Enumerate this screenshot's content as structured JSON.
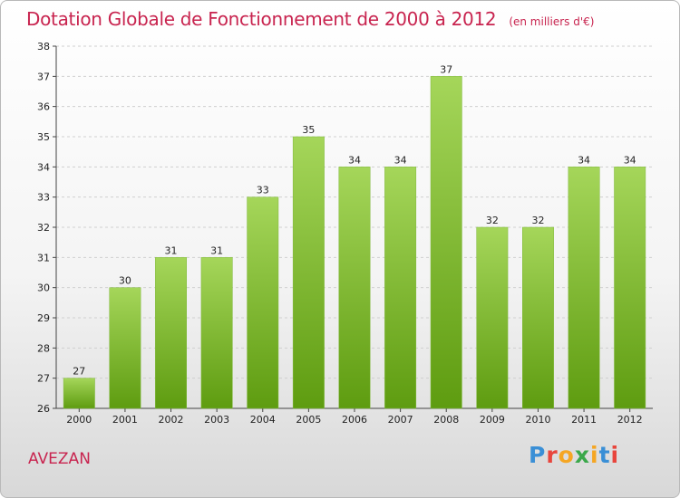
{
  "header": {
    "title": "Dotation Globale de Fonctionnement de 2000 à 2012",
    "subtitle": "(en milliers d'€)"
  },
  "footer": {
    "city": "AVEZAN",
    "logo_text": "Proxiti",
    "logo_colors": [
      "#3a8fd6",
      "#e8453c",
      "#f5a623",
      "#3aa84a",
      "#f5a623",
      "#3a8fd6",
      "#e8453c"
    ]
  },
  "colors": {
    "title": "#c8244f",
    "bar_light": "#a5d65a",
    "bar_dark": "#5e9c10",
    "grid": "#d0d0d0"
  },
  "chart_data": {
    "type": "bar",
    "title": "Dotation Globale de Fonctionnement de 2000 à 2012",
    "subtitle": "(en milliers d'€)",
    "categories": [
      "2000",
      "2001",
      "2002",
      "2003",
      "2004",
      "2005",
      "2006",
      "2007",
      "2008",
      "2009",
      "2010",
      "2011",
      "2012"
    ],
    "values": [
      27,
      30,
      31,
      31,
      33,
      35,
      34,
      34,
      37,
      32,
      32,
      34,
      34
    ],
    "ylim": [
      26,
      38
    ],
    "yticks": [
      26,
      27,
      28,
      29,
      30,
      31,
      32,
      33,
      34,
      35,
      36,
      37,
      38
    ],
    "grid": "horizontal-dashed",
    "legend": "none"
  }
}
